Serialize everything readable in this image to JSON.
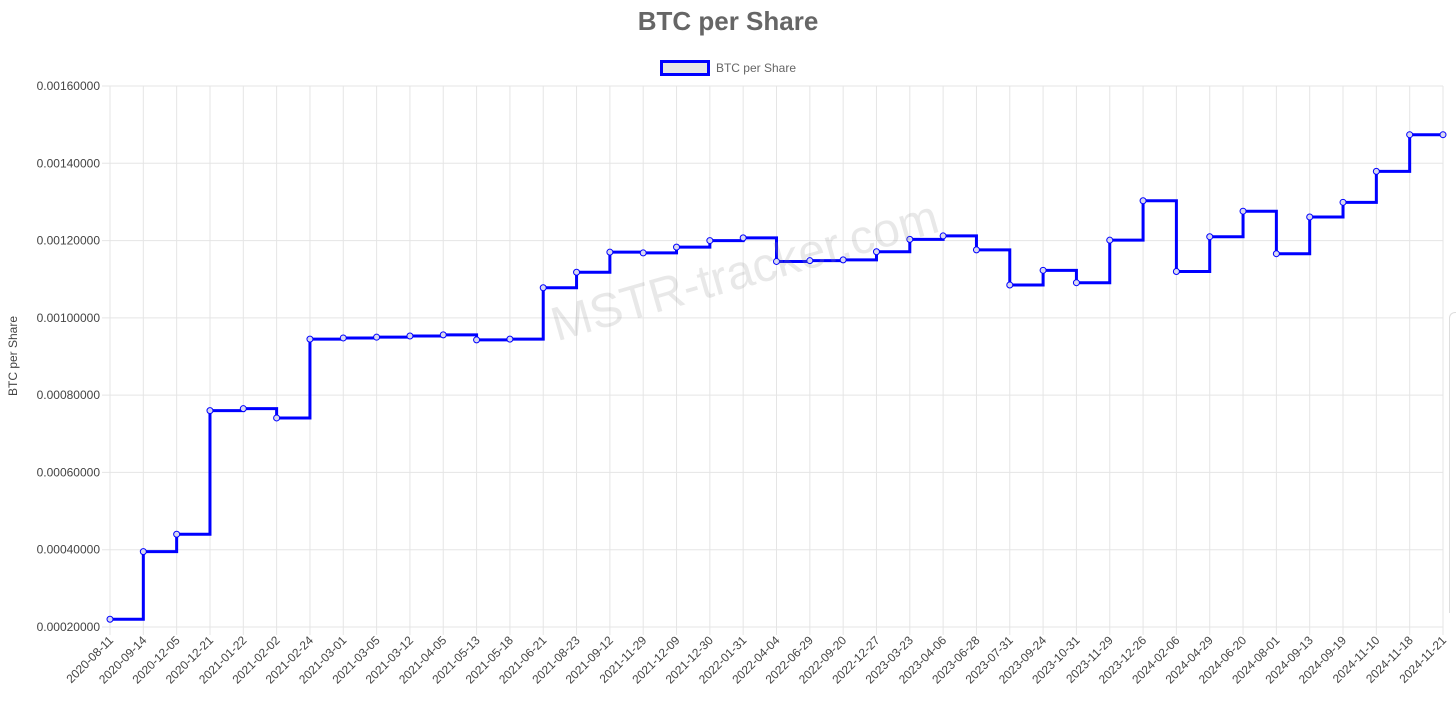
{
  "chart_data": {
    "type": "line",
    "stepped": true,
    "title": "BTC per Share",
    "xlabel": "",
    "ylabel": "BTC per Share",
    "ylim": [
      0.0002,
      0.0016
    ],
    "yticks": [
      "0.00020000",
      "0.00040000",
      "0.00060000",
      "0.00080000",
      "0.00100000",
      "0.00120000",
      "0.00140000",
      "0.00160000"
    ],
    "grid": true,
    "legend_position": "top",
    "watermark": "MSTR-tracker.com",
    "colors": {
      "line": "#0000ff",
      "grid": "#e5e5e5",
      "title": "#666666"
    },
    "categories": [
      "2020-08-11",
      "2020-09-14",
      "2020-12-05",
      "2020-12-21",
      "2021-01-22",
      "2021-02-02",
      "2021-02-24",
      "2021-03-01",
      "2021-03-05",
      "2021-03-12",
      "2021-04-05",
      "2021-05-13",
      "2021-05-18",
      "2021-06-21",
      "2021-08-23",
      "2021-09-12",
      "2021-11-29",
      "2021-12-09",
      "2021-12-30",
      "2022-01-31",
      "2022-04-04",
      "2022-06-29",
      "2022-09-20",
      "2022-12-27",
      "2023-03-23",
      "2023-04-06",
      "2023-06-28",
      "2023-07-31",
      "2023-09-24",
      "2023-10-31",
      "2023-11-29",
      "2023-12-26",
      "2024-02-06",
      "2024-04-29",
      "2024-06-20",
      "2024-08-01",
      "2024-09-13",
      "2024-09-19",
      "2024-11-10",
      "2024-11-18",
      "2024-11-21"
    ],
    "series": [
      {
        "name": "BTC per Share",
        "values": [
          0.00022,
          0.000395,
          0.00044,
          0.00076,
          0.000765,
          0.000741,
          0.000945,
          0.000948,
          0.00095,
          0.000953,
          0.000956,
          0.000943,
          0.000945,
          0.001078,
          0.001118,
          0.00117,
          0.001168,
          0.001183,
          0.0012,
          0.001207,
          0.001146,
          0.001148,
          0.00115,
          0.001171,
          0.001203,
          0.001212,
          0.001176,
          0.001085,
          0.001123,
          0.001091,
          0.001201,
          0.001303,
          0.00112,
          0.00121,
          0.001276,
          0.001166,
          0.001261,
          0.001299,
          0.001379,
          0.001474,
          0.001474
        ]
      }
    ]
  }
}
